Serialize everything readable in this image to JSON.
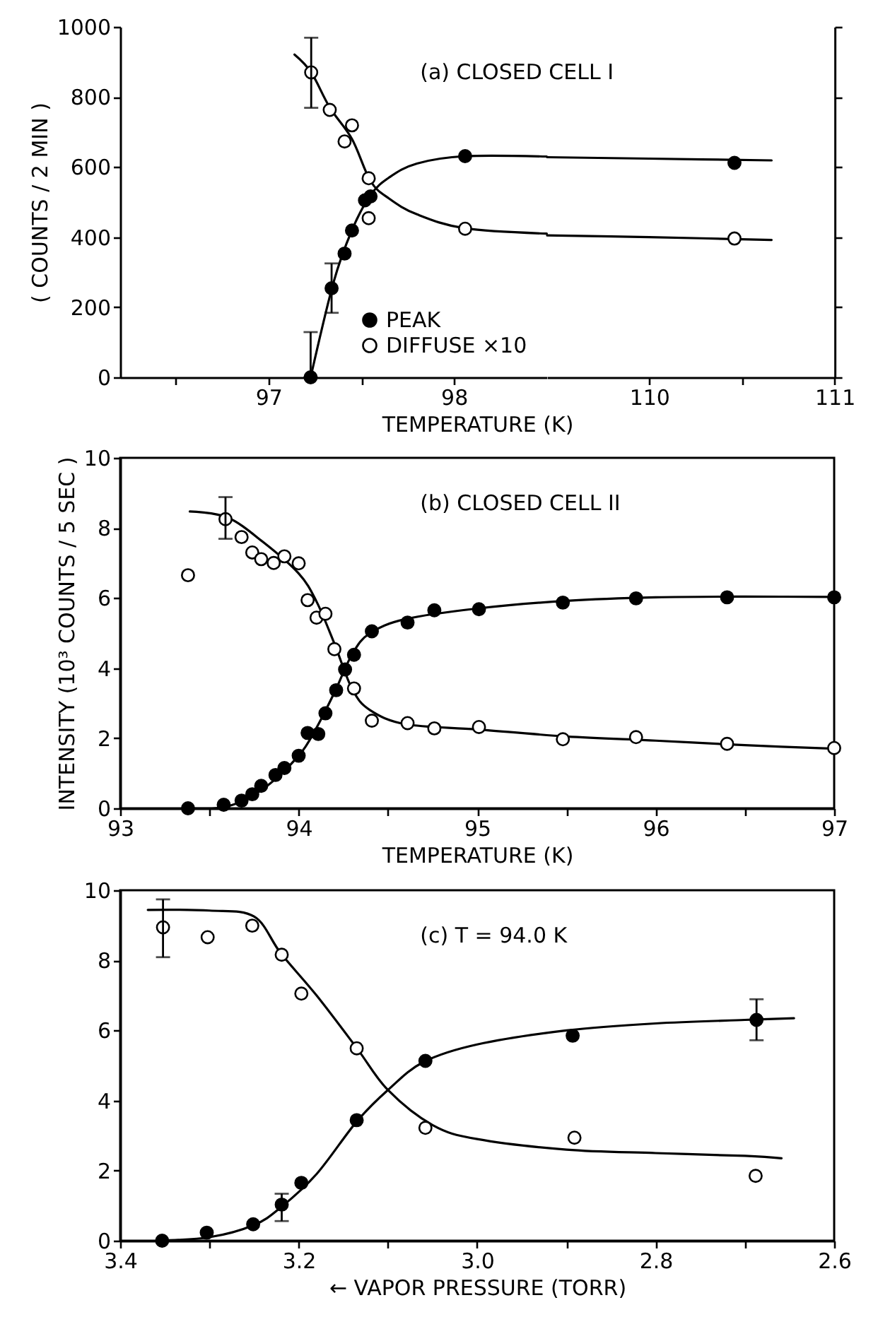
{
  "chart_data": [
    {
      "type": "scatter",
      "xlabel": "TEMPERATURE (K)",
      "ylabel": "( COUNTS / 2 MIN )",
      "annotations": [
        "(a) CLOSED CELL I"
      ],
      "xlim": [
        96.2,
        98.5
      ],
      "xticks": [
        {
          "value": 96.5,
          "label": null
        },
        97,
        {
          "value": 97.5,
          "label": null
        },
        98
      ],
      "ylim": [
        0,
        1000
      ],
      "yticks": [
        0,
        200,
        400,
        600,
        800,
        1000
      ],
      "legend": "bottom right",
      "series": [
        {
          "name": "PEAK",
          "color": "#000000",
          "marker": "circle",
          "x": [
            97.227,
            97.34,
            97.41,
            97.45,
            97.52,
            97.55,
            98.06
          ],
          "values": [
            0,
            254,
            353,
            419,
            505,
            516,
            631
          ],
          "errors": [
            [
              0,
              129
            ],
            [
              184,
              325
            ],
            null,
            null,
            null,
            null,
            null
          ]
        },
        {
          "name": "DIFFUSE ×10",
          "color": "#ffffff",
          "marker": "circle",
          "x": [
            97.23,
            97.33,
            97.41,
            97.45,
            97.54,
            97.54,
            98.06
          ],
          "values": [
            870,
            763,
            673,
            719,
            568,
            454,
            424
          ],
          "errors": [
            [
              769,
              969
            ],
            null,
            null,
            null,
            null,
            null,
            null
          ]
        },
        {
          "type": "line",
          "color": "#000000",
          "x": [
            97.227,
            97.35,
            97.45,
            97.55,
            97.65,
            97.8,
            98.06,
            98.5
          ],
          "values": [
            0,
            270,
            420,
            520,
            570,
            610,
            631,
            630
          ]
        },
        {
          "type": "line",
          "color": "#000000",
          "x": [
            97.14,
            97.23,
            97.33,
            97.45,
            97.55,
            97.65,
            97.8,
            98.06,
            98.5
          ],
          "values": [
            921,
            870,
            770,
            680,
            560,
            510,
            465,
            425,
            410
          ]
        }
      ]
    },
    {
      "type": "scatter",
      "tick_labels": "x",
      "xlim": [
        109.45,
        111
      ],
      "xticks": [
        110,
        {
          "value": 110.5,
          "label": null
        },
        111
      ],
      "ylim": [
        0,
        1000
      ],
      "yticks": [
        0,
        200,
        400,
        600,
        800,
        1000
      ],
      "series": [
        {
          "color": "#000000",
          "marker": "circle",
          "x": [
            110.46
          ],
          "values": [
            612
          ]
        },
        {
          "color": "#ffffff",
          "marker": "circle",
          "x": [
            110.46
          ],
          "values": [
            396
          ]
        },
        {
          "type": "line",
          "color": "#000000",
          "x": [
            109.45,
            110.0,
            110.66
          ],
          "values": [
            628,
            624,
            619
          ]
        },
        {
          "type": "line",
          "color": "#000000",
          "x": [
            109.45,
            110.0,
            110.66
          ],
          "values": [
            405,
            400,
            392
          ]
        }
      ]
    },
    {
      "type": "scatter",
      "xlabel": "TEMPERATURE (K)",
      "ylabel": "INTENSITY (10³ COUNTS / 5 SEC )",
      "annotations": [
        "(b) CLOSED CELL II"
      ],
      "xlim": [
        93,
        97
      ],
      "xticks": [
        93,
        {
          "value": 93.5,
          "label": null
        },
        94,
        {
          "value": 94.5,
          "label": null
        },
        95,
        {
          "value": 95.5,
          "label": null
        },
        96,
        {
          "value": 96.5,
          "label": null
        },
        97
      ],
      "ylim": [
        0,
        10
      ],
      "yticks": [
        0,
        2,
        4,
        6,
        8,
        10
      ],
      "series": [
        {
          "color": "#000000",
          "marker": "circle",
          "x": [
            93.38,
            93.58,
            93.68,
            93.74,
            93.79,
            93.87,
            93.92,
            94.0,
            94.05,
            94.11,
            94.15,
            94.21,
            94.26,
            94.31,
            94.41,
            94.61,
            94.76,
            95.01,
            95.48,
            95.89,
            96.4,
            97.0
          ],
          "values": [
            0,
            0.1,
            0.22,
            0.4,
            0.64,
            0.95,
            1.15,
            1.5,
            2.15,
            2.12,
            2.71,
            3.37,
            3.96,
            4.38,
            5.05,
            5.3,
            5.65,
            5.68,
            5.87,
            5.99,
            6.02,
            6.02
          ]
        },
        {
          "color": "#ffffff",
          "marker": "circle",
          "x": [
            93.38,
            93.59,
            93.68,
            93.74,
            93.79,
            93.86,
            93.92,
            94.0,
            94.05,
            94.1,
            94.15,
            94.2,
            94.31,
            94.41,
            94.61,
            94.76,
            95.01,
            95.48,
            95.89,
            96.4,
            97.0
          ],
          "values": [
            6.65,
            8.25,
            7.74,
            7.3,
            7.11,
            7.0,
            7.19,
            6.99,
            5.94,
            5.44,
            5.55,
            4.54,
            3.42,
            2.5,
            2.43,
            2.28,
            2.32,
            1.97,
            2.03,
            1.84,
            1.72
          ],
          "errors": [
            null,
            [
              7.69,
              8.88
            ],
            null,
            null,
            null,
            null,
            null,
            null,
            null,
            null,
            null,
            null,
            null,
            null,
            null,
            null,
            null,
            null,
            null,
            null,
            null
          ]
        },
        {
          "type": "line",
          "color": "#000000",
          "x": [
            93.4,
            93.6,
            93.8,
            94.0,
            94.1,
            94.2,
            94.3,
            94.4,
            94.6,
            95.0,
            95.5,
            96.0,
            96.5,
            97.0
          ],
          "values": [
            0,
            0.05,
            0.55,
            1.5,
            2.3,
            3.3,
            4.4,
            5.0,
            5.4,
            5.7,
            5.92,
            6.02,
            6.04,
            6.03
          ]
        },
        {
          "type": "line",
          "color": "#000000",
          "x": [
            93.39,
            93.6,
            93.8,
            94.0,
            94.1,
            94.2,
            94.3,
            94.4,
            94.6,
            95.0,
            95.5,
            96.0,
            96.5,
            97.0
          ],
          "values": [
            8.47,
            8.3,
            7.6,
            6.7,
            5.9,
            4.7,
            3.4,
            2.8,
            2.4,
            2.25,
            2.05,
            1.93,
            1.8,
            1.7
          ]
        }
      ]
    },
    {
      "type": "scatter",
      "xlabel": "← VAPOR PRESSURE (TORR)",
      "annotations": [
        "(c)  T = 94.0 K"
      ],
      "xlim": [
        3.4,
        2.6
      ],
      "xticks": [
        3.4,
        {
          "value": 3.3,
          "label": null
        },
        3.2,
        {
          "value": 3.1,
          "label": null
        },
        {
          "value": 3,
          "label": "3.0"
        },
        {
          "value": 2.9,
          "label": null
        },
        2.8,
        {
          "value": 2.7,
          "label": null
        },
        2.6
      ],
      "ylim": [
        0,
        10
      ],
      "yticks": [
        0,
        2,
        4,
        6,
        8,
        10
      ],
      "series": [
        {
          "color": "#000000",
          "marker": "circle",
          "x": [
            3.353,
            3.303,
            3.251,
            3.219,
            3.197,
            3.135,
            3.058,
            2.893,
            2.687
          ],
          "values": [
            0,
            0.23,
            0.47,
            1.03,
            1.65,
            3.44,
            5.13,
            5.85,
            6.3
          ],
          "errors": [
            null,
            null,
            null,
            [
              0.56,
              1.34
            ],
            null,
            null,
            null,
            null,
            [
              5.72,
              6.89
            ]
          ]
        },
        {
          "color": "#ffffff",
          "marker": "circle",
          "x": [
            3.352,
            3.302,
            3.252,
            3.219,
            3.197,
            3.135,
            3.058,
            2.891,
            2.688
          ],
          "values": [
            8.94,
            8.66,
            8.99,
            8.16,
            7.05,
            5.49,
            3.22,
            2.94,
            1.85
          ],
          "errors": [
            [
              8.09,
              9.74
            ],
            null,
            null,
            null,
            null,
            null,
            null,
            null,
            null
          ]
        },
        {
          "type": "line",
          "color": "#000000",
          "x": [
            3.36,
            3.3,
            3.25,
            3.22,
            3.18,
            3.135,
            3.1,
            3.06,
            3.0,
            2.9,
            2.8,
            2.7,
            2.645
          ],
          "values": [
            0,
            0.1,
            0.45,
            0.95,
            1.9,
            3.4,
            4.3,
            5.1,
            5.6,
            6.0,
            6.2,
            6.3,
            6.35
          ]
        },
        {
          "type": "line",
          "color": "#000000",
          "x": [
            3.369,
            3.3,
            3.25,
            3.22,
            3.18,
            3.135,
            3.1,
            3.05,
            3.0,
            2.9,
            2.8,
            2.7,
            2.659
          ],
          "values": [
            9.44,
            9.42,
            9.25,
            8.2,
            7.0,
            5.5,
            4.3,
            3.3,
            2.9,
            2.6,
            2.5,
            2.42,
            2.35
          ]
        }
      ]
    }
  ]
}
